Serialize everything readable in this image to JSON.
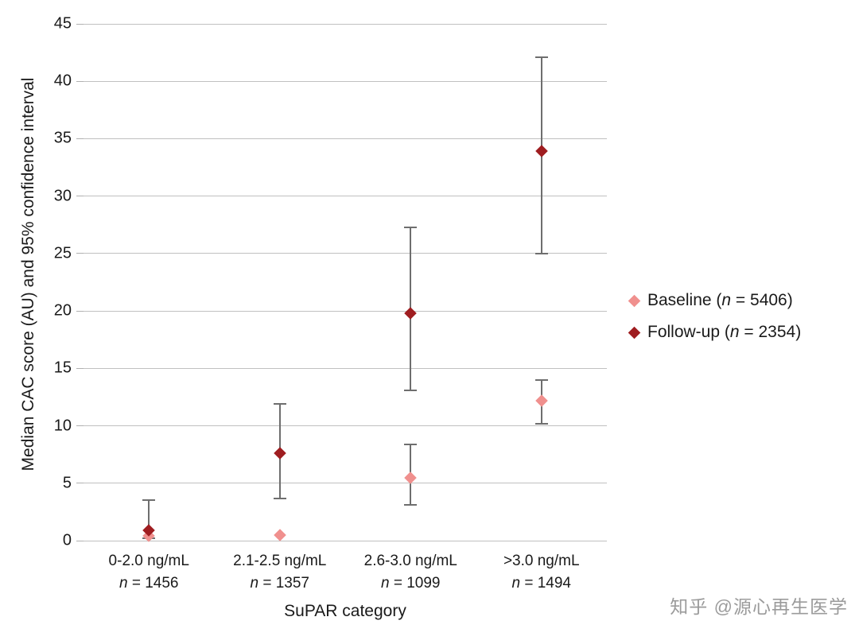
{
  "watermark": "知乎 @源心再生医学",
  "chart_data": {
    "type": "scatter",
    "title": "",
    "xlabel": "SuPAR category",
    "ylabel": "Median CAC score (AU) and 95% confidence interval",
    "ylim": [
      0,
      45
    ],
    "yticks": [
      0,
      5,
      10,
      15,
      20,
      25,
      30,
      35,
      40,
      45
    ],
    "grid": true,
    "legend_position": "right",
    "error_bar_color": "#6e6e6e",
    "gridline_color": "#c0c0c0",
    "categories": [
      {
        "label": "0-2.0 ng/mL",
        "n_label": "n = 1456"
      },
      {
        "label": "2.1-2.5 ng/mL",
        "n_label": "n = 1357"
      },
      {
        "label": "2.6-3.0 ng/mL",
        "n_label": "n = 1099"
      },
      {
        "label": ">3.0 ng/mL",
        "n_label": "n = 1494"
      }
    ],
    "series": [
      {
        "name": "Baseline (n = 5406)",
        "marker": "diamond",
        "color": "#f0908e",
        "values": [
          0.4,
          0.5,
          5.5,
          12.2
        ],
        "ci_low": [
          null,
          null,
          3.1,
          10.2
        ],
        "ci_high": [
          null,
          null,
          8.4,
          14.0
        ]
      },
      {
        "name": "Follow-up (n = 2354)",
        "marker": "diamond",
        "color": "#9f1d20",
        "values": [
          0.9,
          7.6,
          19.8,
          33.9
        ],
        "ci_low": [
          0.2,
          3.7,
          13.1,
          25.0
        ],
        "ci_high": [
          3.5,
          11.9,
          27.3,
          42.1
        ]
      }
    ]
  }
}
